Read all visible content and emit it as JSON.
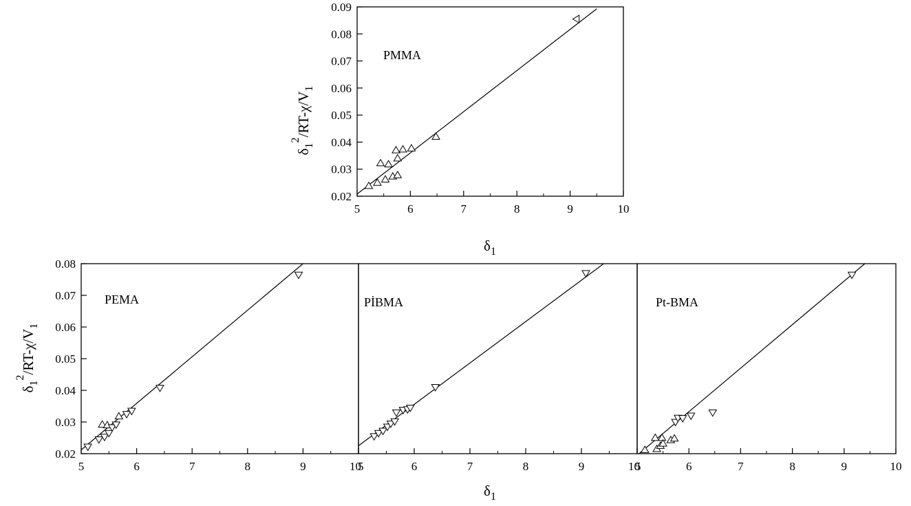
{
  "chart_data": [
    {
      "type": "scatter",
      "label": "PMMA",
      "xlabel": "δ1",
      "ylabel": "δ1²/RT-χ/V1",
      "xlim": [
        5,
        10
      ],
      "ylim": [
        0.02,
        0.09
      ],
      "xticks": [
        "5",
        "6",
        "7",
        "8",
        "9",
        "10"
      ],
      "yticks": [
        "0.02",
        "0.03",
        "0.04",
        "0.05",
        "0.06",
        "0.07",
        "0.08",
        "0.09"
      ],
      "fit_line": [
        [
          5.0,
          0.0208
        ],
        [
          9.5,
          0.0893
        ]
      ],
      "points": [
        {
          "x": 5.22,
          "y": 0.0238,
          "m": "up"
        },
        {
          "x": 5.38,
          "y": 0.025,
          "m": "up"
        },
        {
          "x": 5.44,
          "y": 0.0322,
          "m": "up"
        },
        {
          "x": 5.53,
          "y": 0.0262,
          "m": "up"
        },
        {
          "x": 5.59,
          "y": 0.0318,
          "m": "up"
        },
        {
          "x": 5.67,
          "y": 0.0273,
          "m": "up"
        },
        {
          "x": 5.73,
          "y": 0.037,
          "m": "up"
        },
        {
          "x": 5.76,
          "y": 0.0278,
          "m": "up"
        },
        {
          "x": 5.76,
          "y": 0.034,
          "m": "up"
        },
        {
          "x": 5.86,
          "y": 0.0373,
          "m": "up"
        },
        {
          "x": 6.02,
          "y": 0.0377,
          "m": "up"
        },
        {
          "x": 6.48,
          "y": 0.042,
          "m": "up"
        },
        {
          "x": 9.12,
          "y": 0.0855,
          "m": "left"
        }
      ]
    },
    {
      "type": "scatter",
      "label": "PEMA",
      "xlabel": "δ1",
      "ylabel": "δ1²/RT-χ/V1",
      "xlim": [
        5,
        10
      ],
      "ylim": [
        0.02,
        0.08
      ],
      "xticks": [
        "5",
        "6",
        "7",
        "8",
        "9",
        "10"
      ],
      "yticks": [
        "0.02",
        "0.03",
        "0.04",
        "0.05",
        "0.06",
        "0.07",
        "0.08"
      ],
      "fit_line": [
        [
          5.0,
          0.0212
        ],
        [
          9.0,
          0.08
        ]
      ],
      "points": [
        {
          "x": 5.12,
          "y": 0.0222,
          "m": "down"
        },
        {
          "x": 5.32,
          "y": 0.0245,
          "m": "down"
        },
        {
          "x": 5.38,
          "y": 0.0292,
          "m": "up"
        },
        {
          "x": 5.42,
          "y": 0.0253,
          "m": "down"
        },
        {
          "x": 5.47,
          "y": 0.029,
          "m": "up"
        },
        {
          "x": 5.5,
          "y": 0.0265,
          "m": "down"
        },
        {
          "x": 5.56,
          "y": 0.0283,
          "m": "down"
        },
        {
          "x": 5.63,
          "y": 0.0292,
          "m": "down"
        },
        {
          "x": 5.68,
          "y": 0.0318,
          "m": "up"
        },
        {
          "x": 5.82,
          "y": 0.0325,
          "m": "down"
        },
        {
          "x": 5.91,
          "y": 0.0335,
          "m": "down"
        },
        {
          "x": 6.42,
          "y": 0.0408,
          "m": "down"
        },
        {
          "x": 8.92,
          "y": 0.0765,
          "m": "down"
        }
      ]
    },
    {
      "type": "scatter",
      "label": "PİBMA",
      "xlabel": "δ1",
      "ylabel": "",
      "xlim": [
        5,
        10
      ],
      "ylim": [
        0.02,
        0.08
      ],
      "xticks": [
        "5",
        "6",
        "7",
        "8",
        "9",
        "10"
      ],
      "yticks": [],
      "fit_line": [
        [
          5.0,
          0.0225
        ],
        [
          9.4,
          0.08
        ]
      ],
      "points": [
        {
          "x": 5.28,
          "y": 0.0255,
          "m": "down"
        },
        {
          "x": 5.36,
          "y": 0.0265,
          "m": "down"
        },
        {
          "x": 5.44,
          "y": 0.0272,
          "m": "down"
        },
        {
          "x": 5.52,
          "y": 0.0285,
          "m": "down"
        },
        {
          "x": 5.58,
          "y": 0.0295,
          "m": "down"
        },
        {
          "x": 5.65,
          "y": 0.0302,
          "m": "down"
        },
        {
          "x": 5.68,
          "y": 0.033,
          "m": "down"
        },
        {
          "x": 5.8,
          "y": 0.0338,
          "m": "down"
        },
        {
          "x": 5.88,
          "y": 0.034,
          "m": "down"
        },
        {
          "x": 5.93,
          "y": 0.0345,
          "m": "down"
        },
        {
          "x": 6.38,
          "y": 0.041,
          "m": "down"
        },
        {
          "x": 9.08,
          "y": 0.077,
          "m": "down"
        }
      ]
    },
    {
      "type": "scatter",
      "label": "Pt-BMA",
      "xlabel": "δ1",
      "ylabel": "",
      "xlim": [
        5,
        10
      ],
      "ylim": [
        0.02,
        0.08
      ],
      "xticks": [
        "5",
        "6",
        "7",
        "8",
        "9",
        "10"
      ],
      "yticks": [],
      "fit_line": [
        [
          5.0,
          0.0195
        ],
        [
          9.4,
          0.08
        ]
      ],
      "points": [
        {
          "x": 5.15,
          "y": 0.0212,
          "m": "up"
        },
        {
          "x": 5.35,
          "y": 0.025,
          "m": "up"
        },
        {
          "x": 5.38,
          "y": 0.0215,
          "m": "up"
        },
        {
          "x": 5.45,
          "y": 0.0225,
          "m": "up"
        },
        {
          "x": 5.48,
          "y": 0.025,
          "m": "up"
        },
        {
          "x": 5.5,
          "y": 0.0232,
          "m": "up"
        },
        {
          "x": 5.65,
          "y": 0.0243,
          "m": "up"
        },
        {
          "x": 5.72,
          "y": 0.0248,
          "m": "up"
        },
        {
          "x": 5.74,
          "y": 0.03,
          "m": "down"
        },
        {
          "x": 5.79,
          "y": 0.0313,
          "m": "down"
        },
        {
          "x": 5.88,
          "y": 0.0312,
          "m": "down"
        },
        {
          "x": 6.04,
          "y": 0.032,
          "m": "down"
        },
        {
          "x": 6.46,
          "y": 0.033,
          "m": "down"
        },
        {
          "x": 9.15,
          "y": 0.0765,
          "m": "down"
        }
      ]
    }
  ]
}
